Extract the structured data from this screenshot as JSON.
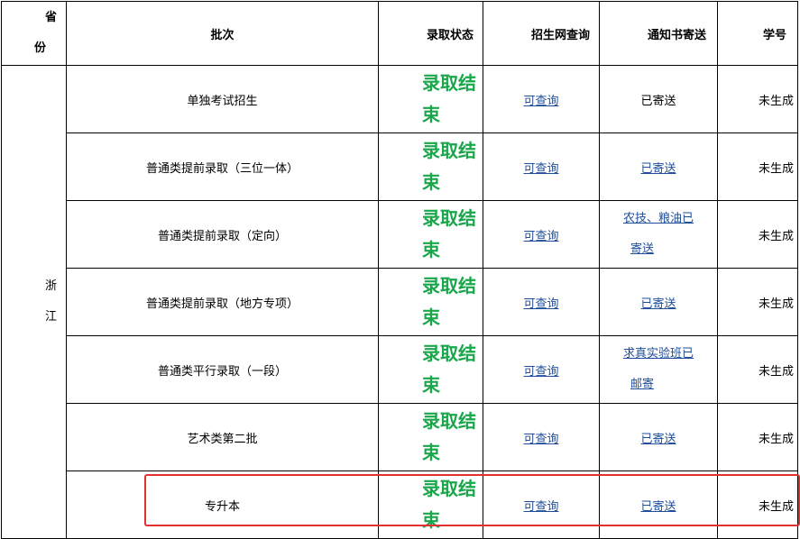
{
  "headers": {
    "province_1": "省",
    "province_2": "份",
    "batch": "批次",
    "status": "录取状态",
    "query": "招生网查询",
    "notice": "通知书寄送",
    "student_id": "学号"
  },
  "province": {
    "line1": "浙",
    "line2": "江"
  },
  "rows": [
    {
      "batch": "单独考试招生",
      "status_1": "录取结",
      "status_2": "束",
      "query": "可查询",
      "notice": "已寄送",
      "notice_link": false,
      "student_id": "未生成"
    },
    {
      "batch": "普通类提前录取（三位一体）",
      "status_1": "录取结",
      "status_2": "束",
      "query": "可查询",
      "notice": "已寄送",
      "notice_link": true,
      "student_id": "未生成"
    },
    {
      "batch": "普通类提前录取（定向）",
      "status_1": "录取结",
      "status_2": "束",
      "query": "可查询",
      "notice_1": "农技、粮油已",
      "notice_2": "寄送",
      "notice_link": true,
      "student_id": "未生成"
    },
    {
      "batch": "普通类提前录取（地方专项）",
      "status_1": "录取结",
      "status_2": "束",
      "query": "可查询",
      "notice": "已寄送",
      "notice_link": true,
      "student_id": "未生成"
    },
    {
      "batch": "普通类平行录取（一段）",
      "status_1": "录取结",
      "status_2": "束",
      "query": "可查询",
      "notice_1": "求真实验班已",
      "notice_2": "邮寄",
      "notice_link": true,
      "student_id": "未生成"
    },
    {
      "batch": "艺术类第二批",
      "status_1": "录取结",
      "status_2": "束",
      "query": "可查询",
      "notice": "已寄送",
      "notice_link": true,
      "student_id": "未生成"
    },
    {
      "batch": "专升本",
      "status_1": "录取结",
      "status_2": "束",
      "query": "可查询",
      "notice": "已寄送",
      "notice_link": true,
      "student_id": "未生成",
      "highlighted": true
    }
  ],
  "colors": {
    "status_green": "#1aa64a",
    "link_blue": "#1f4e9a",
    "highlight_red": "#e53030"
  }
}
